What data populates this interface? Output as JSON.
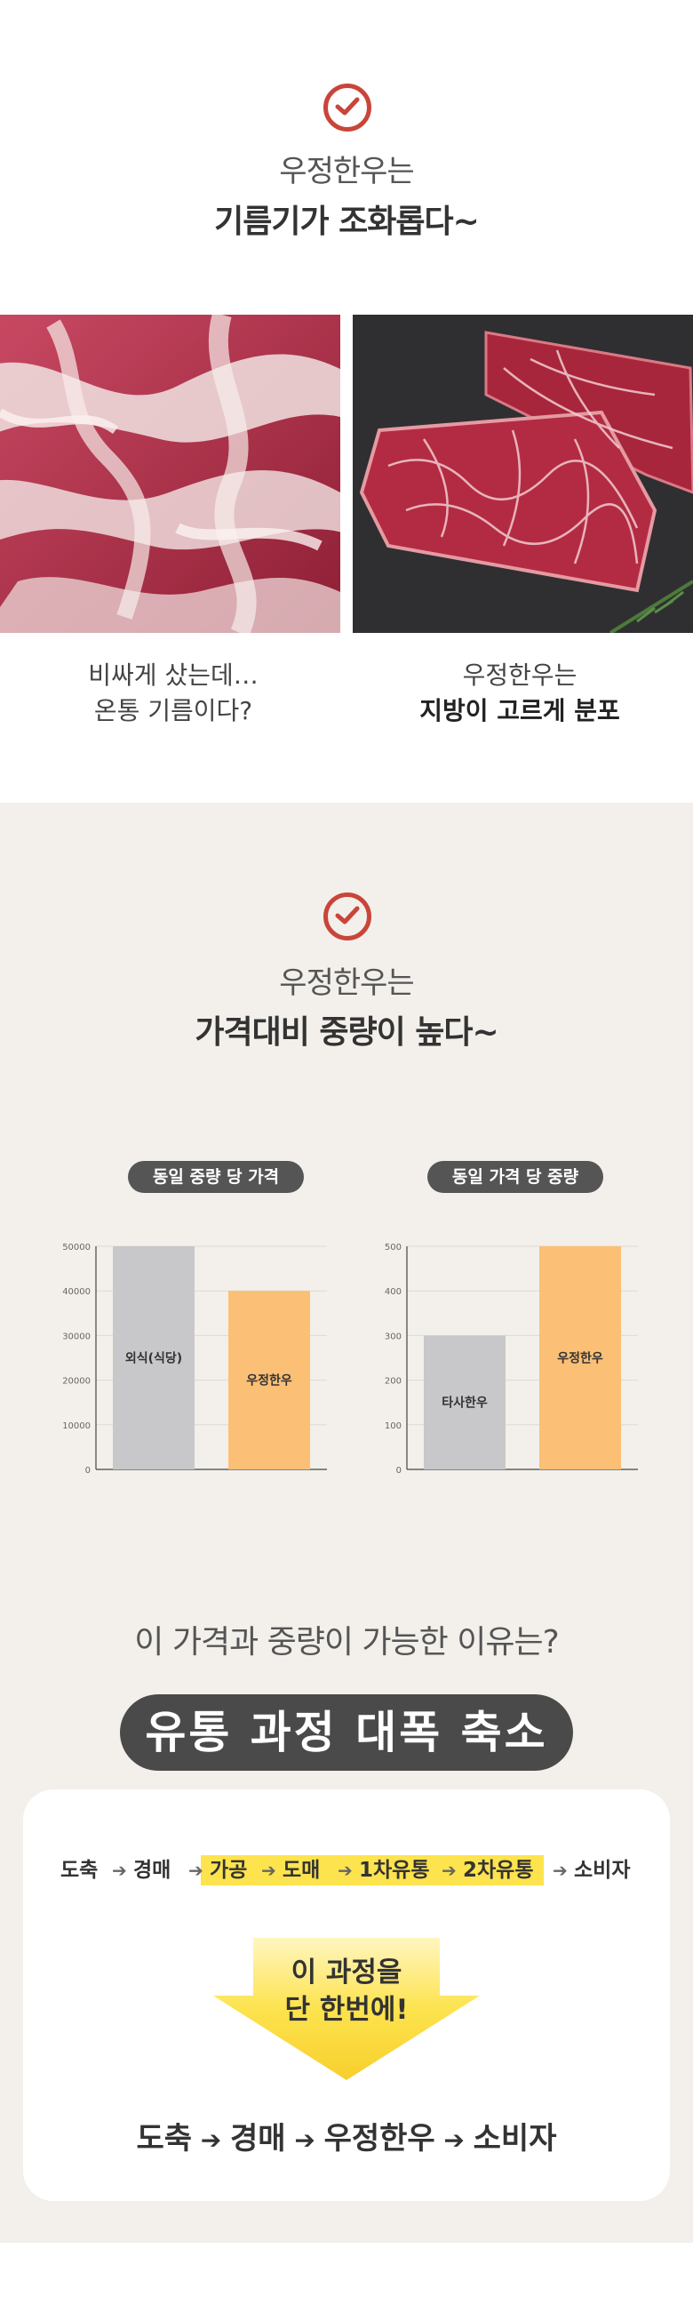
{
  "section1": {
    "title_line1": "우정한우는",
    "title_line2": "기름기가 조화롭다~",
    "left_caption_line1": "비싸게 샀는데…",
    "left_caption_line2": "온통 기름이다?",
    "right_caption_line1": "우정한우는",
    "right_caption_line2": "지방이 고르게 분포"
  },
  "section2": {
    "title_line1": "우정한우는",
    "title_line2": "가격대비 중량이 높다~",
    "pill_left": "동일 중량 당 가격",
    "pill_right": "동일 가격 당 중량"
  },
  "chart_data": [
    {
      "type": "bar",
      "title": "동일 중량 당 가격",
      "categories": [
        "외식(식당)",
        "우정한우"
      ],
      "values": [
        50000,
        40000
      ],
      "ylim": [
        0,
        50000
      ],
      "yticks": [
        0,
        10000,
        20000,
        30000,
        40000,
        50000
      ],
      "colors": [
        "#c8c8ca",
        "#fbbf76"
      ],
      "grid": true
    },
    {
      "type": "bar",
      "title": "동일 가격 당 중량",
      "categories": [
        "타사한우",
        "우정한우"
      ],
      "values": [
        300,
        500
      ],
      "ylim": [
        0,
        500
      ],
      "yticks": [
        0,
        100,
        200,
        300,
        400,
        500
      ],
      "colors": [
        "#c8c8ca",
        "#fbbf76"
      ],
      "grid": true
    }
  ],
  "section3": {
    "question": "이 가격과 중량이 가능한 이유는?",
    "headline": "유통 과정 대폭 축소",
    "flow_steps": [
      "도축",
      "경매",
      "가공",
      "도매",
      "1차유통",
      "2차유통",
      "소비자"
    ],
    "arrow_text_line1": "이 과정을",
    "arrow_text_line2": "단 한번에!",
    "final_steps": [
      "도축",
      "경매",
      "우정한우",
      "소비자"
    ],
    "highlight_color": "#fde34e"
  }
}
